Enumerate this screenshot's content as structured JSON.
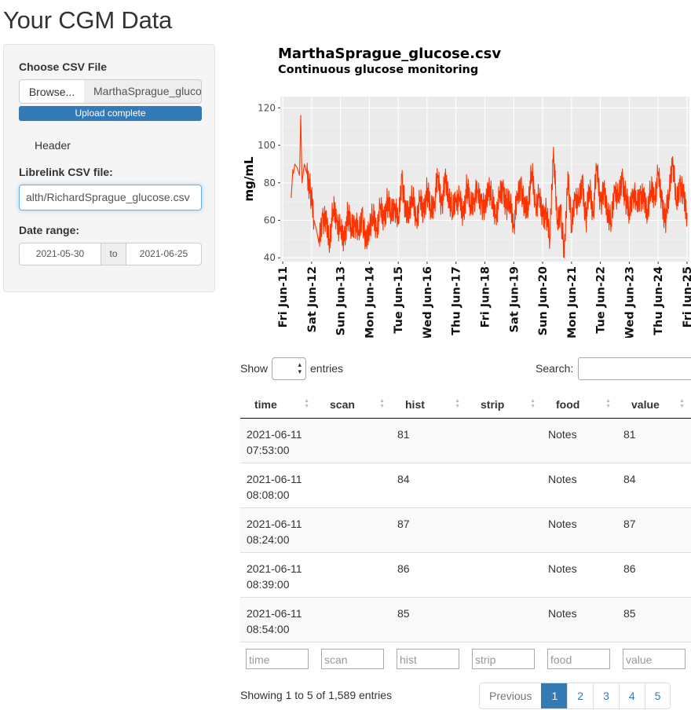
{
  "page": {
    "title": "Your CGM Data"
  },
  "sidebar": {
    "choose_file_label": "Choose CSV File",
    "browse_label": "Browse...",
    "file_name": "MarthaSprague_glucose.csv",
    "upload_status": "Upload complete",
    "header_checkbox_label": "Header",
    "librelink_label": "Librelink CSV file:",
    "librelink_value": "alth/RichardSprague_glucose.csv",
    "date_range_label": "Date range:",
    "date_start": "2021-05-30",
    "date_sep": "to",
    "date_end": "2021-06-25"
  },
  "chart_data": {
    "type": "line",
    "title": "MarthaSprague_glucose.csv",
    "subtitle": "Continuous glucose monitoring",
    "ylabel": "mg/mL",
    "xlabel": "",
    "ylim": [
      38,
      126
    ],
    "yticks": [
      40,
      60,
      80,
      100,
      120
    ],
    "xlim": [
      "2021-06-10 22:00",
      "2021-06-25 02:00"
    ],
    "xticks": [
      "Fri Jun-11",
      "Sat Jun-12",
      "Sun Jun-13",
      "Mon Jun-14",
      "Tue Jun-15",
      "Wed Jun-16",
      "Thu Jun-17",
      "Fri Jun-18",
      "Sat Jun-19",
      "Sun Jun-20",
      "Mon Jun-21",
      "Tue Jun-22",
      "Wed Jun-23",
      "Thu Jun-24",
      "Fri Jun-25"
    ],
    "line_color": "#ff3300",
    "grid": true,
    "background": "#ebebeb",
    "series": [
      {
        "x": [
          "2021-06-11 07:00",
          "2021-06-11 07:53",
          "2021-06-11 08:08",
          "2021-06-11 08:24",
          "2021-06-11 08:39",
          "2021-06-11 08:54",
          "2021-06-11 10:00",
          "2021-06-11 12:00",
          "2021-06-11 14:00",
          "2021-06-11 15:00",
          "2021-06-11 16:00",
          "2021-06-11 18:00",
          "2021-06-11 20:00",
          "2021-06-11 23:00",
          "2021-06-12 02:00",
          "2021-06-12 04:00",
          "2021-06-12 06:00",
          "2021-06-12 09:00",
          "2021-06-12 12:00",
          "2021-06-12 15:00",
          "2021-06-12 18:00",
          "2021-06-12 21:00",
          "2021-06-13 00:00",
          "2021-06-13 03:00",
          "2021-06-13 06:00",
          "2021-06-13 09:00",
          "2021-06-13 12:00",
          "2021-06-13 15:00",
          "2021-06-13 18:00",
          "2021-06-13 21:00",
          "2021-06-14 00:00",
          "2021-06-14 03:00",
          "2021-06-14 06:00",
          "2021-06-14 09:00",
          "2021-06-14 12:00",
          "2021-06-14 15:00",
          "2021-06-14 18:00",
          "2021-06-14 21:00",
          "2021-06-15 00:00",
          "2021-06-15 03:00",
          "2021-06-15 06:00",
          "2021-06-15 09:00",
          "2021-06-15 12:00",
          "2021-06-15 15:00",
          "2021-06-15 18:00",
          "2021-06-15 21:00",
          "2021-06-16 00:00",
          "2021-06-16 03:00",
          "2021-06-16 06:00",
          "2021-06-16 09:00",
          "2021-06-16 12:00",
          "2021-06-16 15:00",
          "2021-06-16 18:00",
          "2021-06-16 21:00",
          "2021-06-17 00:00",
          "2021-06-17 03:00",
          "2021-06-17 06:00",
          "2021-06-17 09:00",
          "2021-06-17 12:00",
          "2021-06-17 15:00",
          "2021-06-17 18:00",
          "2021-06-17 21:00",
          "2021-06-18 00:00",
          "2021-06-18 03:00",
          "2021-06-18 06:00",
          "2021-06-18 09:00",
          "2021-06-18 12:00",
          "2021-06-18 15:00",
          "2021-06-18 18:00",
          "2021-06-18 21:00",
          "2021-06-19 00:00",
          "2021-06-19 03:00",
          "2021-06-19 06:00",
          "2021-06-19 09:00",
          "2021-06-19 12:00",
          "2021-06-19 15:00",
          "2021-06-19 18:00",
          "2021-06-19 21:00",
          "2021-06-20 00:00",
          "2021-06-20 03:00",
          "2021-06-20 06:00",
          "2021-06-20 09:00",
          "2021-06-20 12:00",
          "2021-06-20 15:00",
          "2021-06-20 18:00",
          "2021-06-20 21:00",
          "2021-06-21 00:00",
          "2021-06-21 03:00",
          "2021-06-21 06:00",
          "2021-06-21 09:00",
          "2021-06-21 12:00",
          "2021-06-21 15:00",
          "2021-06-21 18:00",
          "2021-06-21 21:00",
          "2021-06-22 00:00",
          "2021-06-22 03:00",
          "2021-06-22 06:00",
          "2021-06-22 09:00",
          "2021-06-22 12:00",
          "2021-06-22 15:00",
          "2021-06-22 18:00",
          "2021-06-22 21:00",
          "2021-06-23 00:00",
          "2021-06-23 03:00",
          "2021-06-23 06:00",
          "2021-06-23 09:00",
          "2021-06-23 12:00",
          "2021-06-23 15:00",
          "2021-06-23 18:00",
          "2021-06-23 21:00",
          "2021-06-24 00:00",
          "2021-06-24 03:00",
          "2021-06-24 06:00",
          "2021-06-24 09:00",
          "2021-06-24 12:00",
          "2021-06-24 15:00",
          "2021-06-24 18:00",
          "2021-06-24 21:00",
          "2021-06-25 00:00"
        ],
        "y": [
          72,
          81,
          84,
          87,
          86,
          85,
          90,
          88,
          84,
          116,
          80,
          90,
          85,
          76,
          60,
          55,
          48,
          62,
          58,
          50,
          66,
          60,
          54,
          49,
          63,
          56,
          60,
          52,
          64,
          46,
          58,
          62,
          55,
          66,
          60,
          70,
          64,
          69,
          58,
          84,
          62,
          67,
          72,
          60,
          70,
          64,
          76,
          66,
          70,
          84,
          68,
          80,
          74,
          64,
          72,
          70,
          62,
          78,
          68,
          72,
          75,
          70,
          64,
          80,
          70,
          62,
          72,
          76,
          68,
          70,
          58,
          72,
          80,
          64,
          70,
          86,
          68,
          72,
          62,
          64,
          50,
          99,
          58,
          66,
          40,
          86,
          55,
          74,
          68,
          80,
          60,
          78,
          64,
          89,
          70,
          74,
          66,
          58,
          78,
          70,
          82,
          72,
          64,
          76,
          68,
          74,
          70,
          66,
          76,
          72,
          84,
          70,
          60,
          74,
          94,
          68,
          80,
          72,
          64
        ]
      }
    ]
  },
  "table": {
    "show_label": "Show",
    "entries_label": "entries",
    "search_label": "Search:",
    "columns": [
      "time",
      "scan",
      "hist",
      "strip",
      "food",
      "value"
    ],
    "rows": [
      {
        "time_date": "2021-06-11",
        "time_clock": "07:53:00",
        "scan": "",
        "hist": "81",
        "strip": "",
        "food": "Notes",
        "value": "81"
      },
      {
        "time_date": "2021-06-11",
        "time_clock": "08:08:00",
        "scan": "",
        "hist": "84",
        "strip": "",
        "food": "Notes",
        "value": "84"
      },
      {
        "time_date": "2021-06-11",
        "time_clock": "08:24:00",
        "scan": "",
        "hist": "87",
        "strip": "",
        "food": "Notes",
        "value": "87"
      },
      {
        "time_date": "2021-06-11",
        "time_clock": "08:39:00",
        "scan": "",
        "hist": "86",
        "strip": "",
        "food": "Notes",
        "value": "86"
      },
      {
        "time_date": "2021-06-11",
        "time_clock": "08:54:00",
        "scan": "",
        "hist": "85",
        "strip": "",
        "food": "Notes",
        "value": "85"
      }
    ],
    "filter_placeholders": [
      "time",
      "scan",
      "hist",
      "strip",
      "food",
      "value"
    ],
    "info": "Showing 1 to 5 of 1,589 entries",
    "pagination": {
      "previous": "Previous",
      "pages": [
        "1",
        "2",
        "3",
        "4",
        "5"
      ],
      "active": "1"
    }
  }
}
